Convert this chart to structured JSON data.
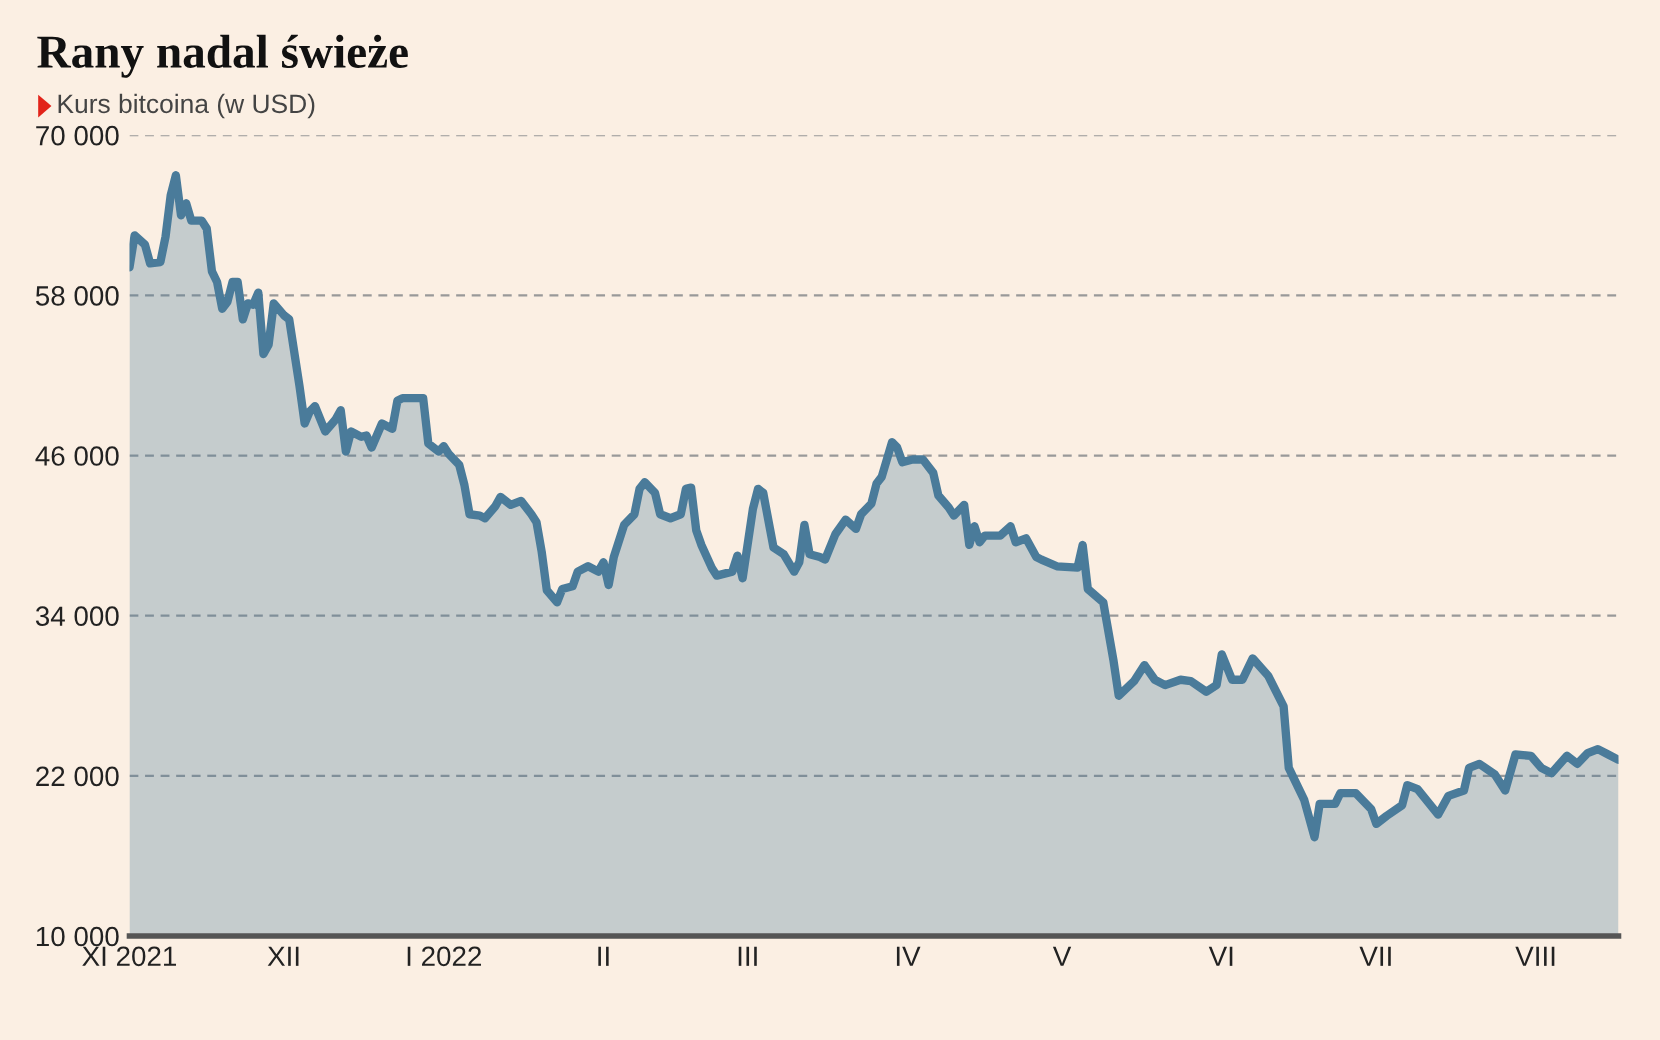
{
  "chart_data": {
    "type": "area",
    "title": "Rany nadal świeże",
    "subtitle": "Kurs bitcoina (w USD)",
    "x": [
      "2021-11-01",
      "2021-11-02",
      "2021-11-04",
      "2021-11-05",
      "2021-11-07",
      "2021-11-08",
      "2021-11-09",
      "2021-11-10",
      "2021-11-11",
      "2021-11-12",
      "2021-11-13",
      "2021-11-15",
      "2021-11-16",
      "2021-11-17",
      "2021-11-18",
      "2021-11-19",
      "2021-11-20",
      "2021-11-21",
      "2021-11-22",
      "2021-11-23",
      "2021-11-24",
      "2021-11-25",
      "2021-11-26",
      "2021-11-27",
      "2021-11-28",
      "2021-11-29",
      "2021-12-01",
      "2021-12-02",
      "2021-12-04",
      "2021-12-05",
      "2021-12-06",
      "2021-12-07",
      "2021-12-09",
      "2021-12-11",
      "2021-12-12",
      "2021-12-13",
      "2021-12-14",
      "2021-12-16",
      "2021-12-17",
      "2021-12-18",
      "2021-12-20",
      "2021-12-22",
      "2021-12-23",
      "2021-12-24",
      "2021-12-28",
      "2021-12-29",
      "2021-12-30",
      "2021-12-31",
      "2022-01-01",
      "2022-01-02",
      "2022-01-04",
      "2022-01-05",
      "2022-01-06",
      "2022-01-08",
      "2022-01-09",
      "2022-01-11",
      "2022-01-12",
      "2022-01-14",
      "2022-01-16",
      "2022-01-18",
      "2022-01-19",
      "2022-01-20",
      "2022-01-21",
      "2022-01-23",
      "2022-01-24",
      "2022-01-26",
      "2022-01-27",
      "2022-01-29",
      "2022-01-31",
      "2022-02-01",
      "2022-02-02",
      "2022-02-03",
      "2022-02-05",
      "2022-02-07",
      "2022-02-08",
      "2022-02-09",
      "2022-02-11",
      "2022-02-12",
      "2022-02-14",
      "2022-02-16",
      "2022-02-17",
      "2022-02-18",
      "2022-02-19",
      "2022-02-20",
      "2022-02-22",
      "2022-02-23",
      "2022-02-26",
      "2022-02-27",
      "2022-02-28",
      "2022-03-02",
      "2022-03-03",
      "2022-03-04",
      "2022-03-06",
      "2022-03-08",
      "2022-03-10",
      "2022-03-11",
      "2022-03-12",
      "2022-03-13",
      "2022-03-15",
      "2022-03-16",
      "2022-03-18",
      "2022-03-20",
      "2022-03-22",
      "2022-03-23",
      "2022-03-25",
      "2022-03-26",
      "2022-03-27",
      "2022-03-29",
      "2022-03-30",
      "2022-03-31",
      "2022-04-02",
      "2022-04-04",
      "2022-04-06",
      "2022-04-07",
      "2022-04-09",
      "2022-04-10",
      "2022-04-12",
      "2022-04-13",
      "2022-04-14",
      "2022-04-15",
      "2022-04-16",
      "2022-04-19",
      "2022-04-21",
      "2022-04-22",
      "2022-04-24",
      "2022-04-26",
      "2022-04-27",
      "2022-04-30",
      "2022-05-04",
      "2022-05-05",
      "2022-05-06",
      "2022-05-09",
      "2022-05-11",
      "2022-05-12",
      "2022-05-15",
      "2022-05-17",
      "2022-05-19",
      "2022-05-21",
      "2022-05-24",
      "2022-05-26",
      "2022-05-29",
      "2022-05-31",
      "2022-06-01",
      "2022-06-03",
      "2022-06-05",
      "2022-06-07",
      "2022-06-10",
      "2022-06-13",
      "2022-06-14",
      "2022-06-17",
      "2022-06-19",
      "2022-06-20",
      "2022-06-23",
      "2022-06-24",
      "2022-06-27",
      "2022-06-30",
      "2022-07-01",
      "2022-07-03",
      "2022-07-06",
      "2022-07-07",
      "2022-07-09",
      "2022-07-13",
      "2022-07-15",
      "2022-07-18",
      "2022-07-19",
      "2022-07-21",
      "2022-07-24",
      "2022-07-26",
      "2022-07-28",
      "2022-07-31",
      "2022-08-02",
      "2022-08-04",
      "2022-08-07",
      "2022-08-09",
      "2022-08-11",
      "2022-08-13",
      "2022-08-15",
      "2022-08-17"
    ],
    "series": [
      {
        "color": "#4a7b9a",
        "values": [
          60100,
          62500,
          61800,
          60400,
          60500,
          62400,
          65500,
          67000,
          64000,
          64900,
          63600,
          63600,
          63000,
          59800,
          59000,
          57000,
          57500,
          59000,
          59000,
          56200,
          57400,
          57300,
          58200,
          53600,
          54300,
          57400,
          56500,
          56200,
          51200,
          48400,
          49300,
          49700,
          47800,
          48700,
          49400,
          46300,
          47800,
          47400,
          47500,
          46600,
          48400,
          48000,
          50100,
          50300,
          50300,
          46900,
          46600,
          46300,
          46700,
          46100,
          45300,
          43800,
          41600,
          41500,
          41300,
          42200,
          42900,
          42300,
          42600,
          41600,
          41000,
          38800,
          35900,
          35000,
          36000,
          36200,
          37300,
          37700,
          37300,
          38000,
          36300,
          38400,
          40800,
          41600,
          43500,
          44000,
          43200,
          41600,
          41300,
          41600,
          43500,
          43600,
          40400,
          39300,
          37600,
          37000,
          37300,
          38500,
          36800,
          42000,
          43500,
          43200,
          39100,
          38600,
          37300,
          38000,
          40800,
          38600,
          38400,
          38200,
          40100,
          41200,
          40500,
          41600,
          42400,
          43900,
          44400,
          47000,
          46600,
          45500,
          45700,
          45700,
          44700,
          43000,
          42100,
          41500,
          42300,
          39300,
          40700,
          39500,
          40000,
          40000,
          40700,
          39500,
          39800,
          38400,
          38200,
          37700,
          37600,
          39300,
          36000,
          35000,
          30600,
          28000,
          29100,
          30300,
          29200,
          28800,
          29200,
          29100,
          28300,
          28800,
          31100,
          29200,
          29200,
          30800,
          29500,
          27200,
          22600,
          20200,
          17400,
          19900,
          19900,
          20700,
          20700,
          19500,
          18400,
          19000,
          19800,
          21300,
          21000,
          19100,
          20500,
          20900,
          22600,
          22900,
          22100,
          20900,
          23600,
          23500,
          22600,
          22200,
          23500,
          22900,
          23700,
          24000,
          23600,
          23200
        ]
      }
    ],
    "xlim": [
      "2021-11-01",
      "2022-08-17"
    ],
    "xticks": [
      {
        "value": "2021-11-01",
        "label": "XI 2021"
      },
      {
        "value": "2021-12-01",
        "label": "XII"
      },
      {
        "value": "2022-01-01",
        "label": "I 2022"
      },
      {
        "value": "2022-02-01",
        "label": "II"
      },
      {
        "value": "2022-03-01",
        "label": "III"
      },
      {
        "value": "2022-04-01",
        "label": "IV"
      },
      {
        "value": "2022-05-01",
        "label": "V"
      },
      {
        "value": "2022-06-01",
        "label": "VI"
      },
      {
        "value": "2022-07-01",
        "label": "VII"
      },
      {
        "value": "2022-08-01",
        "label": "VIII"
      }
    ],
    "ylim": [
      10000,
      70000
    ],
    "yticks": [
      {
        "value": 10000,
        "label": "10 000"
      },
      {
        "value": 22000,
        "label": "22 000"
      },
      {
        "value": 34000,
        "label": "34 000"
      },
      {
        "value": 46000,
        "label": "46 000"
      },
      {
        "value": 58000,
        "label": "58 000"
      },
      {
        "value": 70000,
        "label": "70 000"
      }
    ],
    "grid": "y",
    "legend": false,
    "line_style": "solid"
  }
}
